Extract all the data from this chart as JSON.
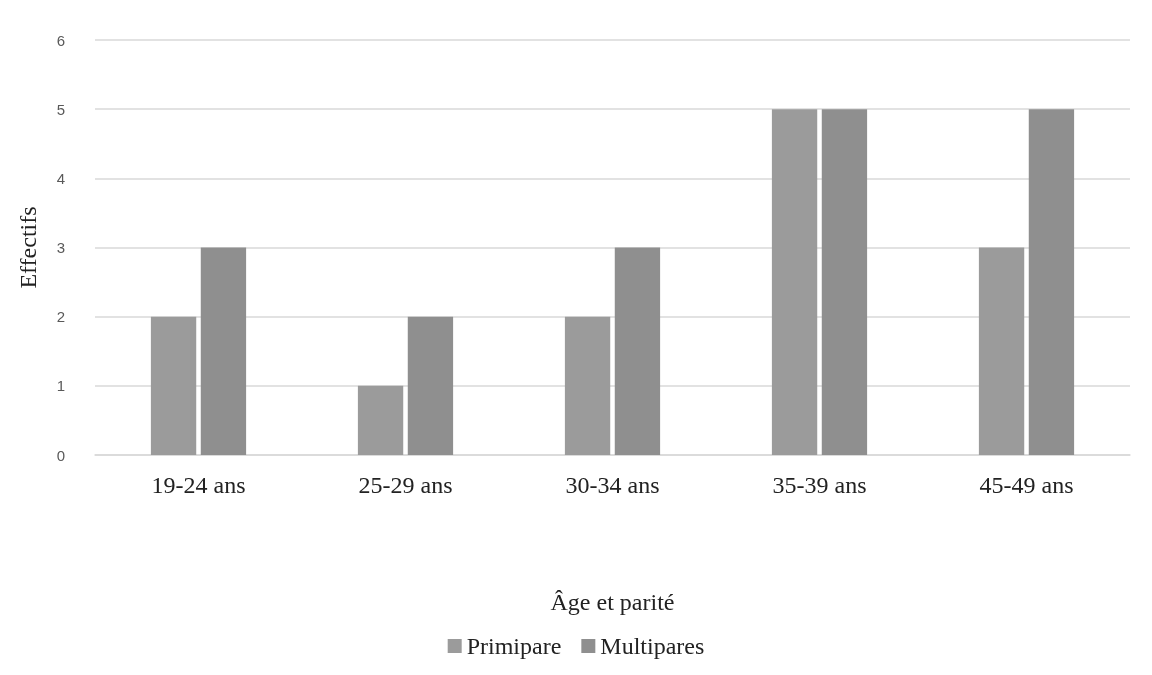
{
  "chart_data": {
    "type": "bar",
    "xlabel": "Âge et parité",
    "ylabel": "Effectifs",
    "categories": [
      "19-24 ans",
      "25-29 ans",
      "30-34 ans",
      "35-39 ans",
      "45-49 ans"
    ],
    "series": [
      {
        "name": "Primipare",
        "color": "#9b9b9b",
        "values": [
          2,
          1,
          2,
          5,
          3
        ]
      },
      {
        "name": "Multipares",
        "color": "#8f8f8f",
        "values": [
          3,
          2,
          3,
          5,
          5
        ]
      }
    ],
    "ylim": [
      0,
      6
    ],
    "yticks": [
      0,
      1,
      2,
      3,
      4,
      5,
      6
    ],
    "grid": "y",
    "legend": "bottom"
  }
}
